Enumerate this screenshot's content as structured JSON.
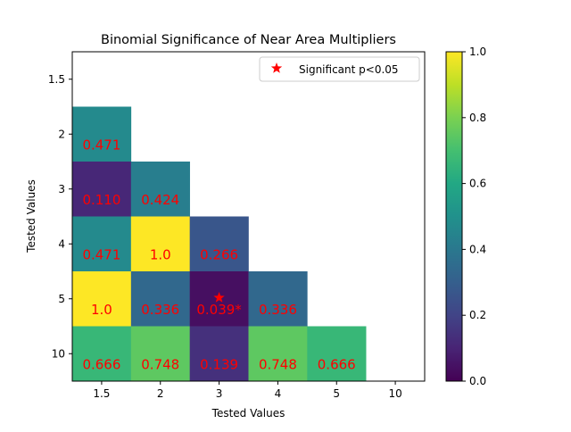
{
  "chart_data": {
    "type": "heatmap",
    "title": "Binomial Significance of Near Area Multipliers",
    "xlabel": "Tested Values",
    "ylabel": "Tested Values",
    "x_categories": [
      "1.5",
      "2",
      "3",
      "4",
      "5",
      "10"
    ],
    "y_categories": [
      "1.5",
      "2",
      "3",
      "4",
      "5",
      "10"
    ],
    "colormap": "viridis",
    "vmin": 0.0,
    "vmax": 1.0,
    "colorbar_ticks": [
      "0.0",
      "0.2",
      "0.4",
      "0.6",
      "0.8",
      "1.0"
    ],
    "values": [
      [
        null,
        null,
        null,
        null,
        null,
        null
      ],
      [
        0.471,
        null,
        null,
        null,
        null,
        null
      ],
      [
        0.11,
        0.424,
        null,
        null,
        null,
        null
      ],
      [
        0.471,
        1.0,
        0.266,
        null,
        null,
        null
      ],
      [
        1.0,
        0.336,
        0.039,
        0.336,
        null,
        null
      ],
      [
        0.666,
        0.748,
        0.139,
        0.748,
        0.666,
        null
      ]
    ],
    "cell_labels": [
      [
        null,
        null,
        null,
        null,
        null,
        null
      ],
      [
        "0.471",
        null,
        null,
        null,
        null,
        null
      ],
      [
        "0.110",
        "0.424",
        null,
        null,
        null,
        null
      ],
      [
        "0.471",
        "1.0",
        "0.266",
        null,
        null,
        null
      ],
      [
        "1.0",
        "0.336",
        "0.039*",
        "0.336",
        null,
        null
      ],
      [
        "0.666",
        "0.748",
        "0.139",
        "0.748",
        "0.666",
        null
      ]
    ],
    "significant_markers": [
      {
        "x": "3",
        "y": "5"
      }
    ],
    "legend": {
      "label": "Significant p<0.05",
      "marker": "star",
      "color": "#ff0000",
      "placement": "upper right"
    },
    "label_color": "#ff0000"
  }
}
